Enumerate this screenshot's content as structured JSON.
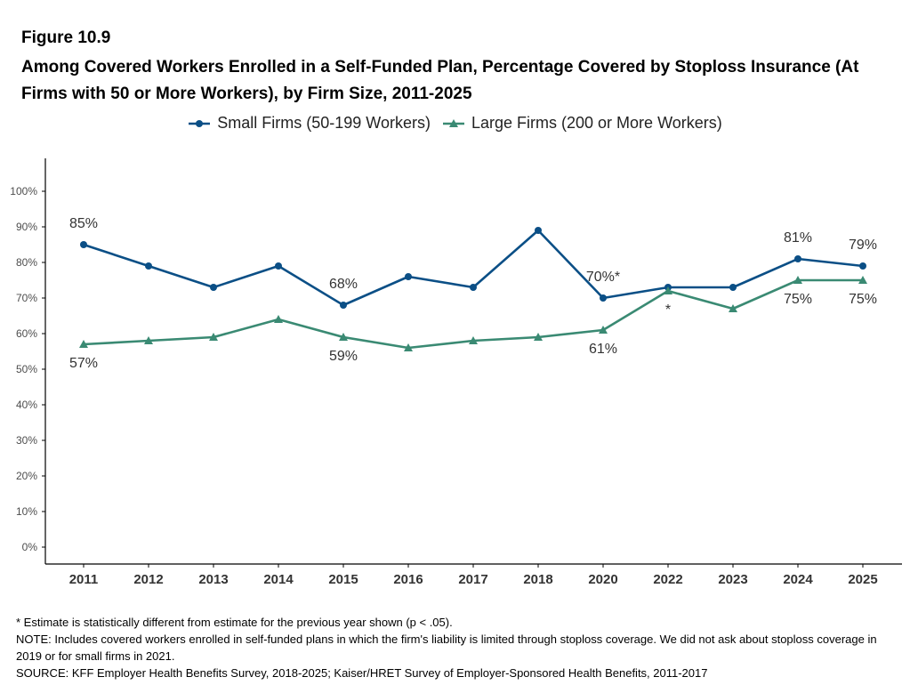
{
  "figure_label": "Figure 10.9",
  "title": "Among Covered Workers Enrolled in a Self-Funded Plan, Percentage Covered by Stoploss Insurance (At Firms with 50 or More Workers), by Firm Size, 2011-2025",
  "chart_data": {
    "type": "line",
    "categories": [
      "2011",
      "2012",
      "2013",
      "2014",
      "2015",
      "2016",
      "2017",
      "2018",
      "2020",
      "2022",
      "2023",
      "2024",
      "2025"
    ],
    "y_ticks": [
      "0%",
      "10%",
      "20%",
      "30%",
      "40%",
      "50%",
      "60%",
      "70%",
      "80%",
      "90%",
      "100%"
    ],
    "ylim": [
      0,
      100
    ],
    "grid": false,
    "legend_position": "top-center",
    "series": [
      {
        "name": "Small Firms (50-199 Workers)",
        "color": "#0b4f86",
        "marker": "circle",
        "values": [
          85,
          79,
          73,
          79,
          68,
          76,
          73,
          89,
          70,
          73,
          73,
          81,
          79
        ],
        "labels": [
          {
            "index": 0,
            "text": "85%",
            "pos": "above"
          },
          {
            "index": 4,
            "text": "68%",
            "pos": "above"
          },
          {
            "index": 8,
            "text": "70%*",
            "pos": "above"
          },
          {
            "index": 11,
            "text": "81%",
            "pos": "above"
          },
          {
            "index": 12,
            "text": "79%",
            "pos": "above"
          }
        ]
      },
      {
        "name": "Large Firms (200 or More Workers)",
        "color": "#3a8a73",
        "marker": "triangle",
        "values": [
          57,
          58,
          59,
          64,
          59,
          56,
          58,
          59,
          61,
          72,
          67,
          75,
          75
        ],
        "labels": [
          {
            "index": 0,
            "text": "57%",
            "pos": "below"
          },
          {
            "index": 4,
            "text": "59%",
            "pos": "below"
          },
          {
            "index": 8,
            "text": "61%",
            "pos": "below"
          },
          {
            "index": 9,
            "text": "*",
            "pos": "below"
          },
          {
            "index": 11,
            "text": "75%",
            "pos": "below"
          },
          {
            "index": 12,
            "text": "75%",
            "pos": "below"
          }
        ]
      }
    ]
  },
  "notes": [
    "* Estimate is statistically different from estimate for the previous year shown (p < .05).",
    "NOTE: Includes covered workers enrolled in self-funded plans in which the firm's liability is limited through stoploss coverage. We did not ask about stoploss coverage in 2019 or for small firms in 2021.",
    "SOURCE: KFF Employer Health Benefits Survey, 2018-2025; Kaiser/HRET Survey of Employer-Sponsored Health Benefits, 2011-2017"
  ]
}
